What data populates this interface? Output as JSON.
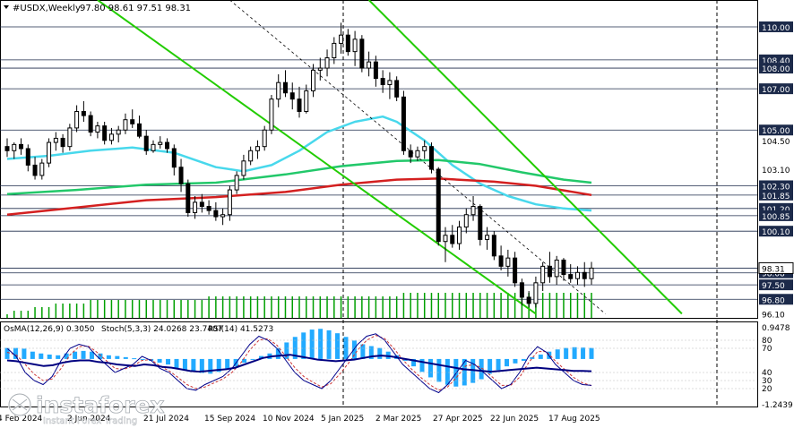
{
  "header": {
    "symbol": "#USDX,Weekly",
    "ohlc": "97.80 98.61 97.51 98.31"
  },
  "indicator_header": {
    "osma": "OsMA(12,26,9) 0.3050",
    "stoch": "Stoch(5,3,3) 24.0268 23.7407",
    "rsi": "RSI(14) 41.5273"
  },
  "watermark": {
    "brand": "instaforex",
    "tagline": "Instant Forex Trading"
  },
  "colors": {
    "background": "#ffffff",
    "candle": "#000000",
    "ma_fast": "#48d8ec",
    "ma_mid": "#22c86a",
    "ma_slow": "#d42020",
    "channel": "#22cc00",
    "level_line": "#1c2a4a",
    "volume": "#00a000",
    "osma_hist": "#22aaff",
    "stoch_main": "#00008b",
    "stoch_signal": "#cc3333",
    "rsi": "#000080",
    "current_price_box": "#ffffff"
  },
  "chart_data": {
    "type": "candlestick",
    "timeframe": "Weekly",
    "ylim": [
      95.9,
      111.3
    ],
    "price_axis_labels": [
      "110.00",
      "108.40",
      "108.00",
      "107.00",
      "105.00",
      "104.50",
      "103.10",
      "102.30",
      "101.85",
      "101.20",
      "100.85",
      "100.10",
      "98.08",
      "97.50",
      "96.80",
      "96.10"
    ],
    "time_axis_labels": [
      "4 Feb 2024",
      "2 Jun 2024",
      "21 Jul 2024",
      "15 Sep 2024",
      "10 Nov 2024",
      "5 Jan 2025",
      "2 Mar 2025",
      "27 Apr 2025",
      "22 Jun 2025",
      "17 Aug 2025"
    ],
    "horizontal_levels": [
      110.0,
      108.4,
      108.0,
      107.0,
      105.0,
      102.3,
      101.85,
      101.2,
      100.85,
      100.1,
      98.31,
      98.08,
      97.5,
      96.8
    ],
    "current_price": 98.31,
    "candles": [
      [
        104.2,
        104.6,
        103.7,
        104.0
      ],
      [
        104.0,
        104.4,
        103.6,
        104.3
      ],
      [
        104.3,
        104.6,
        103.8,
        104.1
      ],
      [
        104.1,
        104.3,
        103.0,
        103.3
      ],
      [
        103.3,
        103.7,
        102.6,
        102.8
      ],
      [
        102.8,
        103.6,
        102.6,
        103.4
      ],
      [
        103.4,
        104.6,
        103.2,
        104.4
      ],
      [
        104.4,
        104.9,
        104.0,
        104.6
      ],
      [
        104.6,
        104.8,
        103.9,
        104.2
      ],
      [
        104.2,
        105.3,
        104.0,
        105.1
      ],
      [
        105.1,
        106.2,
        104.9,
        105.9
      ],
      [
        105.9,
        106.4,
        105.4,
        105.7
      ],
      [
        105.7,
        105.9,
        104.7,
        104.9
      ],
      [
        104.9,
        105.4,
        104.6,
        105.2
      ],
      [
        105.2,
        105.4,
        104.3,
        104.5
      ],
      [
        104.5,
        105.1,
        104.3,
        104.8
      ],
      [
        104.8,
        105.2,
        104.4,
        105.0
      ],
      [
        105.0,
        105.8,
        104.8,
        105.5
      ],
      [
        105.5,
        106.0,
        105.1,
        105.3
      ],
      [
        105.3,
        105.7,
        104.6,
        104.7
      ],
      [
        104.7,
        105.0,
        103.8,
        104.0
      ],
      [
        104.0,
        104.5,
        103.9,
        104.3
      ],
      [
        104.3,
        104.7,
        104.1,
        104.4
      ],
      [
        104.4,
        104.6,
        103.9,
        104.1
      ],
      [
        104.1,
        104.3,
        102.8,
        103.2
      ],
      [
        103.2,
        103.6,
        102.0,
        102.4
      ],
      [
        102.4,
        102.6,
        100.8,
        101.0
      ],
      [
        101.0,
        101.8,
        100.7,
        101.5
      ],
      [
        101.5,
        101.9,
        101.0,
        101.3
      ],
      [
        101.3,
        101.6,
        100.9,
        101.1
      ],
      [
        101.1,
        101.5,
        100.6,
        100.8
      ],
      [
        100.8,
        101.2,
        100.4,
        100.9
      ],
      [
        100.9,
        102.3,
        100.6,
        102.1
      ],
      [
        102.1,
        103.0,
        101.9,
        102.8
      ],
      [
        102.8,
        103.8,
        102.6,
        103.5
      ],
      [
        103.5,
        104.2,
        103.3,
        104.0
      ],
      [
        104.0,
        104.5,
        103.6,
        104.2
      ],
      [
        104.2,
        105.2,
        104.0,
        105.0
      ],
      [
        105.0,
        106.7,
        104.8,
        106.5
      ],
      [
        106.5,
        107.7,
        106.1,
        107.3
      ],
      [
        107.3,
        107.9,
        106.6,
        106.8
      ],
      [
        106.8,
        107.3,
        106.0,
        106.5
      ],
      [
        106.5,
        107.1,
        105.6,
        105.9
      ],
      [
        105.9,
        107.2,
        105.8,
        106.9
      ],
      [
        106.9,
        108.2,
        106.6,
        107.9
      ],
      [
        107.9,
        108.5,
        107.4,
        108.0
      ],
      [
        108.0,
        108.9,
        107.6,
        108.5
      ],
      [
        108.5,
        109.5,
        108.2,
        109.2
      ],
      [
        109.2,
        110.2,
        108.7,
        109.6
      ],
      [
        109.6,
        109.9,
        108.6,
        108.8
      ],
      [
        108.8,
        109.8,
        108.1,
        109.4
      ],
      [
        109.4,
        109.6,
        107.8,
        108.0
      ],
      [
        108.0,
        108.8,
        107.6,
        108.3
      ],
      [
        108.3,
        108.6,
        107.1,
        107.5
      ],
      [
        107.5,
        107.9,
        106.8,
        107.2
      ],
      [
        107.2,
        107.8,
        106.5,
        107.4
      ],
      [
        107.4,
        107.6,
        106.4,
        106.6
      ],
      [
        106.6,
        106.9,
        103.8,
        104.0
      ],
      [
        104.0,
        104.3,
        103.4,
        103.7
      ],
      [
        103.7,
        104.2,
        103.5,
        104.0
      ],
      [
        104.0,
        104.5,
        103.6,
        104.2
      ],
      [
        104.2,
        104.4,
        102.9,
        103.1
      ],
      [
        103.1,
        103.2,
        99.4,
        99.6
      ],
      [
        99.6,
        100.3,
        98.6,
        99.9
      ],
      [
        99.9,
        100.4,
        99.3,
        99.5
      ],
      [
        99.5,
        100.6,
        99.2,
        100.3
      ],
      [
        100.3,
        101.2,
        100.0,
        100.9
      ],
      [
        100.9,
        101.8,
        100.6,
        101.3
      ],
      [
        101.3,
        101.4,
        99.4,
        99.7
      ],
      [
        99.7,
        100.3,
        99.2,
        99.9
      ],
      [
        99.9,
        100.1,
        98.7,
        98.9
      ],
      [
        98.9,
        99.4,
        98.2,
        98.4
      ],
      [
        98.4,
        99.2,
        97.9,
        98.8
      ],
      [
        98.8,
        99.1,
        97.4,
        97.6
      ],
      [
        97.6,
        97.8,
        96.5,
        96.9
      ],
      [
        96.9,
        97.2,
        96.4,
        96.6
      ],
      [
        96.6,
        97.9,
        96.4,
        97.6
      ],
      [
        97.6,
        98.6,
        97.2,
        98.4
      ],
      [
        98.4,
        99.1,
        97.6,
        97.9
      ],
      [
        97.9,
        98.9,
        97.5,
        98.7
      ],
      [
        98.7,
        98.8,
        97.7,
        98.0
      ],
      [
        98.0,
        98.5,
        97.6,
        97.8
      ],
      [
        97.8,
        98.4,
        97.5,
        98.1
      ],
      [
        98.1,
        98.6,
        97.4,
        97.8
      ],
      [
        97.8,
        98.61,
        97.51,
        98.31
      ]
    ],
    "moving_averages": [
      {
        "name": "fast",
        "values": [
          [
            0,
            103.6
          ],
          [
            6,
            103.75
          ],
          [
            12,
            104.0
          ],
          [
            18,
            104.15
          ],
          [
            24,
            103.9
          ],
          [
            30,
            103.2
          ],
          [
            34,
            103.0
          ],
          [
            38,
            103.3
          ],
          [
            42,
            104.0
          ],
          [
            46,
            104.9
          ],
          [
            50,
            105.4
          ],
          [
            54,
            105.65
          ],
          [
            56,
            105.4
          ],
          [
            60,
            104.5
          ],
          [
            64,
            103.3
          ],
          [
            68,
            102.4
          ],
          [
            72,
            101.8
          ],
          [
            76,
            101.4
          ],
          [
            80,
            101.2
          ],
          [
            84,
            101.1
          ]
        ]
      },
      {
        "name": "mid",
        "values": [
          [
            0,
            101.9
          ],
          [
            10,
            102.1
          ],
          [
            20,
            102.35
          ],
          [
            30,
            102.45
          ],
          [
            40,
            102.85
          ],
          [
            48,
            103.25
          ],
          [
            56,
            103.5
          ],
          [
            62,
            103.55
          ],
          [
            68,
            103.35
          ],
          [
            74,
            102.95
          ],
          [
            80,
            102.6
          ],
          [
            84,
            102.45
          ]
        ]
      },
      {
        "name": "slow",
        "values": [
          [
            0,
            100.9
          ],
          [
            10,
            101.25
          ],
          [
            20,
            101.6
          ],
          [
            30,
            101.75
          ],
          [
            40,
            102.0
          ],
          [
            48,
            102.35
          ],
          [
            56,
            102.6
          ],
          [
            62,
            102.65
          ],
          [
            70,
            102.5
          ],
          [
            76,
            102.3
          ],
          [
            84,
            101.85
          ]
        ]
      }
    ],
    "channel_lines": [
      {
        "from": [
          13,
          111.3
        ],
        "to": [
          76,
          96.1
        ]
      },
      {
        "from": [
          52,
          111.3
        ],
        "to": [
          97,
          96.1
        ]
      }
    ],
    "osma": {
      "ylim": [
        -1.2439,
        0.9478
      ],
      "labels": [
        "0.9478",
        "-1.2439"
      ],
      "values": [
        0.3,
        0.3,
        0.28,
        0.2,
        0.15,
        0.12,
        0.1,
        0.15,
        0.2,
        0.22,
        0.2,
        0.15,
        0.1,
        0.08,
        0.05,
        0.02,
        -0.02,
        -0.05,
        -0.1,
        -0.15,
        -0.25,
        -0.3,
        -0.35,
        -0.38,
        -0.4,
        -0.35,
        -0.28,
        -0.2,
        -0.1,
        0.0,
        0.08,
        0.15,
        0.3,
        0.45,
        0.6,
        0.72,
        0.8,
        0.82,
        0.78,
        0.7,
        0.6,
        0.5,
        0.4,
        0.35,
        0.3,
        0.2,
        0.1,
        -0.05,
        -0.2,
        -0.35,
        -0.5,
        -0.62,
        -0.7,
        -0.75,
        -0.72,
        -0.65,
        -0.55,
        -0.4,
        -0.3,
        -0.2,
        -0.12,
        -0.05,
        0.05,
        0.12,
        0.2,
        0.26,
        0.3,
        0.32,
        0.31,
        0.3
      ]
    },
    "stoch": {
      "ylim": [
        0,
        100
      ],
      "levels": [
        "80",
        "70",
        "40",
        "30",
        "20"
      ],
      "main": [
        70,
        60,
        40,
        30,
        25,
        35,
        55,
        70,
        75,
        72,
        60,
        50,
        40,
        45,
        50,
        60,
        55,
        45,
        40,
        30,
        20,
        18,
        25,
        30,
        35,
        45,
        60,
        75,
        85,
        80,
        70,
        55,
        40,
        30,
        25,
        20,
        30,
        45,
        60,
        75,
        85,
        88,
        80,
        65,
        50,
        40,
        30,
        20,
        15,
        25,
        40,
        55,
        50,
        40,
        30,
        20,
        25,
        40,
        60,
        72,
        65,
        50,
        40,
        30,
        25,
        24
      ],
      "signal": [
        65,
        62,
        50,
        38,
        30,
        32,
        45,
        62,
        72,
        73,
        65,
        55,
        45,
        44,
        48,
        55,
        56,
        48,
        42,
        34,
        25,
        20,
        22,
        27,
        32,
        40,
        52,
        68,
        80,
        82,
        74,
        60,
        46,
        35,
        28,
        22,
        26,
        38,
        52,
        68,
        80,
        86,
        82,
        70,
        56,
        44,
        34,
        25,
        18,
        22,
        34,
        48,
        50,
        44,
        34,
        24,
        24,
        34,
        52,
        66,
        66,
        54,
        44,
        34,
        27,
        23.74
      ],
      "rsi": [
        55,
        54,
        52,
        50,
        48,
        49,
        52,
        54,
        55,
        55,
        53,
        52,
        50,
        49,
        48,
        50,
        49,
        47,
        46,
        44,
        42,
        41,
        42,
        43,
        44,
        46,
        50,
        54,
        58,
        60,
        61,
        62,
        60,
        58,
        56,
        55,
        54,
        55,
        56,
        58,
        60,
        61,
        60,
        58,
        56,
        54,
        52,
        50,
        48,
        46,
        44,
        43,
        42,
        41,
        42,
        43,
        44,
        45,
        46,
        45,
        44,
        43,
        42,
        42,
        41.53
      ]
    },
    "volume": [
      1,
      2,
      2,
      2,
      3,
      3,
      3,
      4,
      4,
      4,
      4,
      4,
      5,
      5,
      5,
      5,
      5,
      5,
      5,
      5,
      5,
      5,
      5,
      5,
      5,
      5,
      5,
      5,
      5,
      6,
      6,
      6,
      6,
      6,
      6,
      6,
      6,
      6,
      6,
      6,
      6,
      6,
      6,
      6,
      6,
      6,
      6,
      6,
      6,
      6,
      6,
      6,
      6,
      6,
      6,
      6,
      6,
      7,
      7,
      7,
      7,
      7,
      7,
      7,
      7,
      7,
      7,
      7,
      7,
      7,
      7,
      7,
      7,
      7,
      7,
      7,
      7,
      7,
      7,
      7,
      7,
      7,
      7,
      7,
      7
    ]
  }
}
